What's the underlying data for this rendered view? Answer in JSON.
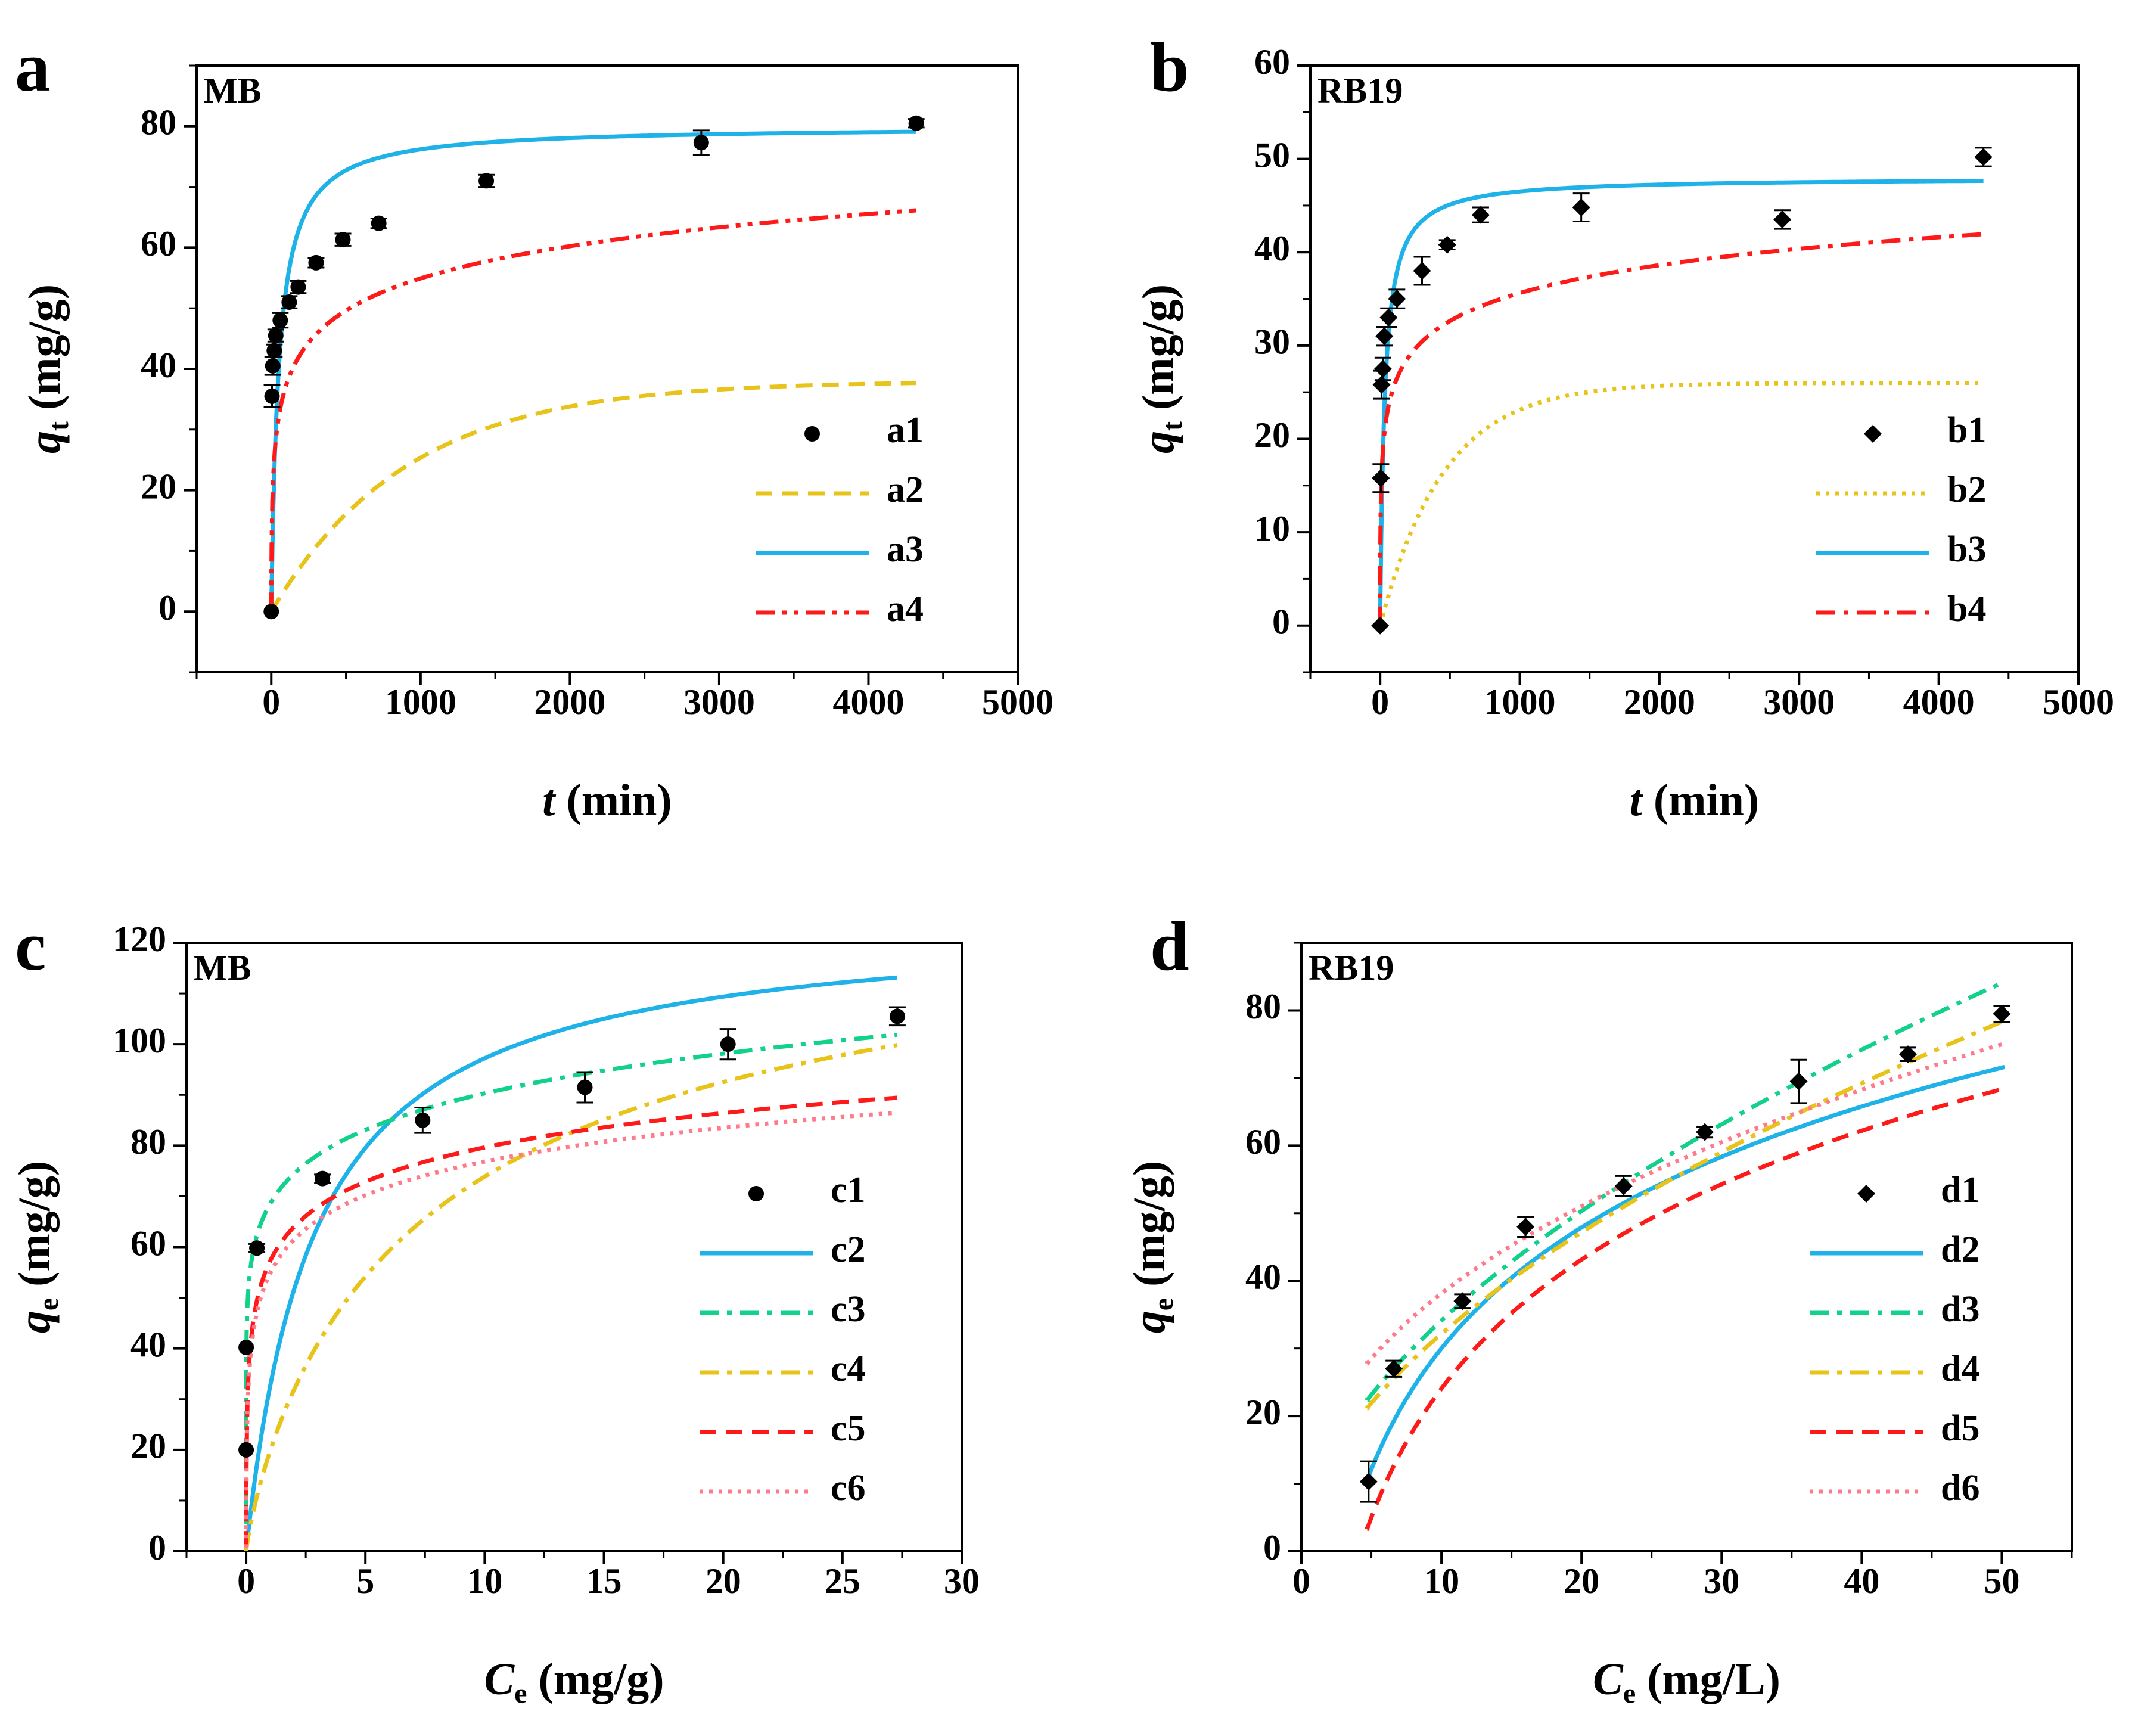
{
  "chart_data": [
    {
      "panel": "a",
      "type": "line",
      "dataset_label": "MB",
      "xlabel": {
        "main": "t",
        "rest": " (min)"
      },
      "ylabel": {
        "main": "q",
        "sub": "t",
        "rest": " (mg/g)"
      },
      "xlim": [
        -500,
        5000
      ],
      "ylim": [
        -10,
        90
      ],
      "xticks": [
        0,
        1000,
        2000,
        3000,
        4000,
        5000
      ],
      "xtick_labels": [
        "0",
        "1000",
        "2000",
        "3000",
        "4000",
        "5000"
      ],
      "yticks": [
        0,
        20,
        40,
        60,
        80
      ],
      "ytick_labels": [
        "0",
        "20",
        "40",
        "60",
        "80"
      ],
      "legend_position": "bottom-right",
      "scatter": {
        "name": "a1",
        "marker": "circle",
        "x": [
          0,
          5,
          10,
          20,
          30,
          60,
          120,
          180,
          300,
          480,
          720,
          1440,
          2880,
          4320
        ],
        "y": [
          0,
          35.5,
          40.5,
          43.0,
          45.5,
          48.0,
          51.0,
          53.5,
          57.5,
          61.3,
          64.0,
          71.0,
          77.3,
          80.5
        ],
        "err": [
          0,
          1.8,
          1.5,
          1.0,
          1.0,
          1.2,
          1.0,
          1.0,
          0.8,
          1.0,
          0.8,
          1.0,
          2.0,
          0.7
        ]
      },
      "curves": [
        {
          "name": "a2",
          "color": "#E8C31A",
          "dash": "dash",
          "model": "pfo",
          "params": {
            "qe": 38.0,
            "k": 0.0011
          },
          "xmax": 4320
        },
        {
          "name": "a3",
          "color": "#1EB2E8",
          "dash": "solid",
          "model": "pso",
          "params": {
            "qe": 80.0,
            "k": 0.00025
          },
          "xmax": 4320
        },
        {
          "name": "a4",
          "color": "#FF1A1A",
          "dash": "dashdotdot",
          "model": "elovich",
          "params": {
            "a": 9.92,
            "b": 0.1305
          },
          "xmax": 4320
        }
      ]
    },
    {
      "panel": "b",
      "type": "line",
      "dataset_label": "RB19",
      "xlabel": {
        "main": "t",
        "rest": " (min)"
      },
      "ylabel": {
        "main": "q",
        "sub": "t",
        "rest": " (mg/g)"
      },
      "xlim": [
        -500,
        5000
      ],
      "ylim": [
        -5,
        60
      ],
      "xticks": [
        0,
        1000,
        2000,
        3000,
        4000,
        5000
      ],
      "xtick_labels": [
        "0",
        "1000",
        "2000",
        "3000",
        "4000",
        "5000"
      ],
      "yticks": [
        0,
        10,
        20,
        30,
        40,
        50,
        60
      ],
      "ytick_labels": [
        "0",
        "10",
        "20",
        "30",
        "40",
        "50",
        "60"
      ],
      "legend_position": "bottom-right",
      "scatter": {
        "name": "b1",
        "marker": "diamond",
        "x": [
          0,
          5,
          10,
          20,
          30,
          60,
          120,
          300,
          480,
          720,
          1440,
          2880,
          4320
        ],
        "y": [
          0,
          15.8,
          25.8,
          27.5,
          31.0,
          33.0,
          35.0,
          38.0,
          40.8,
          44.0,
          44.8,
          43.5,
          50.2
        ],
        "err": [
          0,
          1.5,
          1.5,
          1.2,
          1.0,
          1.0,
          1.0,
          1.5,
          0.5,
          0.8,
          1.5,
          1.0,
          1.0
        ]
      },
      "curves": [
        {
          "name": "b2",
          "color": "#E8C31A",
          "dash": "dot",
          "model": "pfo",
          "params": {
            "qe": 26.0,
            "k": 0.0022
          },
          "xmax": 4320
        },
        {
          "name": "b3",
          "color": "#1EB2E8",
          "dash": "solid",
          "model": "pso",
          "params": {
            "qe": 48.0,
            "k": 0.00065
          },
          "xmax": 4320
        },
        {
          "name": "b4",
          "color": "#FF1A1A",
          "dash": "dashdot",
          "model": "elovich",
          "params": {
            "a": 16.64,
            "b": 0.2318
          },
          "xmax": 4320
        }
      ]
    },
    {
      "panel": "c",
      "type": "line",
      "dataset_label": "MB",
      "xlabel": {
        "main": "C",
        "sub": "e",
        "rest": " (mg/g)"
      },
      "ylabel": {
        "main": "q",
        "sub": "e",
        "rest": " (mg/g)"
      },
      "xlim": [
        -2.5,
        30
      ],
      "ylim": [
        0,
        120
      ],
      "xticks": [
        0,
        5,
        10,
        15,
        20,
        25,
        30
      ],
      "xtick_labels": [
        "0",
        "5",
        "10",
        "15",
        "20",
        "25",
        "30"
      ],
      "yticks": [
        0,
        20,
        40,
        60,
        80,
        100,
        120
      ],
      "ytick_labels": [
        "0",
        "20",
        "40",
        "60",
        "80",
        "100",
        "120"
      ],
      "legend_position": "bottom-right",
      "scatter": {
        "name": "c1",
        "marker": "circle",
        "x": [
          0.0,
          0.0,
          0.45,
          3.2,
          7.4,
          14.2,
          20.2,
          27.3
        ],
        "y": [
          20.0,
          40.2,
          59.8,
          73.5,
          85.0,
          91.5,
          100.0,
          105.5
        ],
        "err": [
          0,
          0,
          0.8,
          0.8,
          2.5,
          3.0,
          3.0,
          1.8
        ]
      },
      "curves": [
        {
          "name": "c2",
          "color": "#1EB2E8",
          "dash": "solid",
          "model": "langmuir",
          "params": {
            "qm": 125.0,
            "K": 0.35
          },
          "xmin": 0,
          "xmax": 27.3
        },
        {
          "name": "c3",
          "color": "#12D18A",
          "dash": "dashdot",
          "model": "freundlich",
          "params": {
            "K": 68.5,
            "n": 0.12
          },
          "xmin": 0,
          "xmax": 27.3
        },
        {
          "name": "c4",
          "color": "#E8C31A",
          "dash": "dashdot",
          "model": "sips",
          "params": {
            "qm": 135.0,
            "K": 0.125,
            "n": 0.85
          },
          "xmin": 0,
          "xmax": 27.3
        },
        {
          "name": "c5",
          "color": "#FF1A1A",
          "dash": "dash",
          "model": "temkin",
          "params": {
            "A": 350.0,
            "B": 9.76
          },
          "xmin": 0,
          "xmax": 27.3
        },
        {
          "name": "c6",
          "color": "#FF7A8A",
          "dash": "dot",
          "model": "temkin",
          "params": {
            "A": 300.0,
            "B": 9.6
          },
          "xmin": 0,
          "xmax": 27.3
        }
      ]
    },
    {
      "panel": "d",
      "type": "line",
      "dataset_label": "RB19",
      "xlabel": {
        "main": "C",
        "sub": "e",
        "rest": " (mg/L)"
      },
      "ylabel": {
        "main": "q",
        "sub": "e",
        "rest": " (mg/g)"
      },
      "xlim": [
        0,
        55
      ],
      "ylim": [
        0,
        90
      ],
      "xticks": [
        0,
        10,
        20,
        30,
        40,
        50
      ],
      "xtick_labels": [
        "0",
        "10",
        "20",
        "30",
        "40",
        "50"
      ],
      "yticks": [
        0,
        20,
        40,
        60,
        80
      ],
      "ytick_labels": [
        "0",
        "20",
        "40",
        "60",
        "80"
      ],
      "legend_position": "bottom-right",
      "scatter": {
        "name": "d1",
        "marker": "diamond",
        "x": [
          4.8,
          6.6,
          11.5,
          16.0,
          23.0,
          28.8,
          35.5,
          43.3,
          50.0
        ],
        "y": [
          10.3,
          27.0,
          37.0,
          48.0,
          54.0,
          62.0,
          69.5,
          73.5,
          79.5
        ],
        "err": [
          3.0,
          1.2,
          1.0,
          1.5,
          1.5,
          0.8,
          3.2,
          1.0,
          1.2
        ]
      },
      "curves": [
        {
          "name": "d2",
          "color": "#1EB2E8",
          "dash": "solid",
          "model": "temkin",
          "params": {
            "A": 0.32,
            "B": 25.8
          },
          "xmin": 4.7,
          "xmax": 50.2
        },
        {
          "name": "d3",
          "color": "#12D18A",
          "dash": "dashdot",
          "model": "freundlich",
          "params": {
            "K": 9.4,
            "n": 0.56
          },
          "xmin": 4.7,
          "xmax": 50.2
        },
        {
          "name": "d4",
          "color": "#E8C31A",
          "dash": "dashdot",
          "model": "freundlich",
          "params": {
            "K": 9.0,
            "n": 0.553
          },
          "xmin": 4.7,
          "xmax": 50.2
        },
        {
          "name": "d5",
          "color": "#FF1A1A",
          "dash": "dash",
          "model": "temkin",
          "params": {
            "A": 0.24,
            "B": 27.5
          },
          "xmin": 4.7,
          "xmax": 50.2
        },
        {
          "name": "d6",
          "color": "#FF7A8A",
          "dash": "dot",
          "model": "freundlich",
          "params": {
            "K": 14.5,
            "n": 0.42
          },
          "xmin": 4.7,
          "xmax": 50.2
        }
      ]
    }
  ]
}
